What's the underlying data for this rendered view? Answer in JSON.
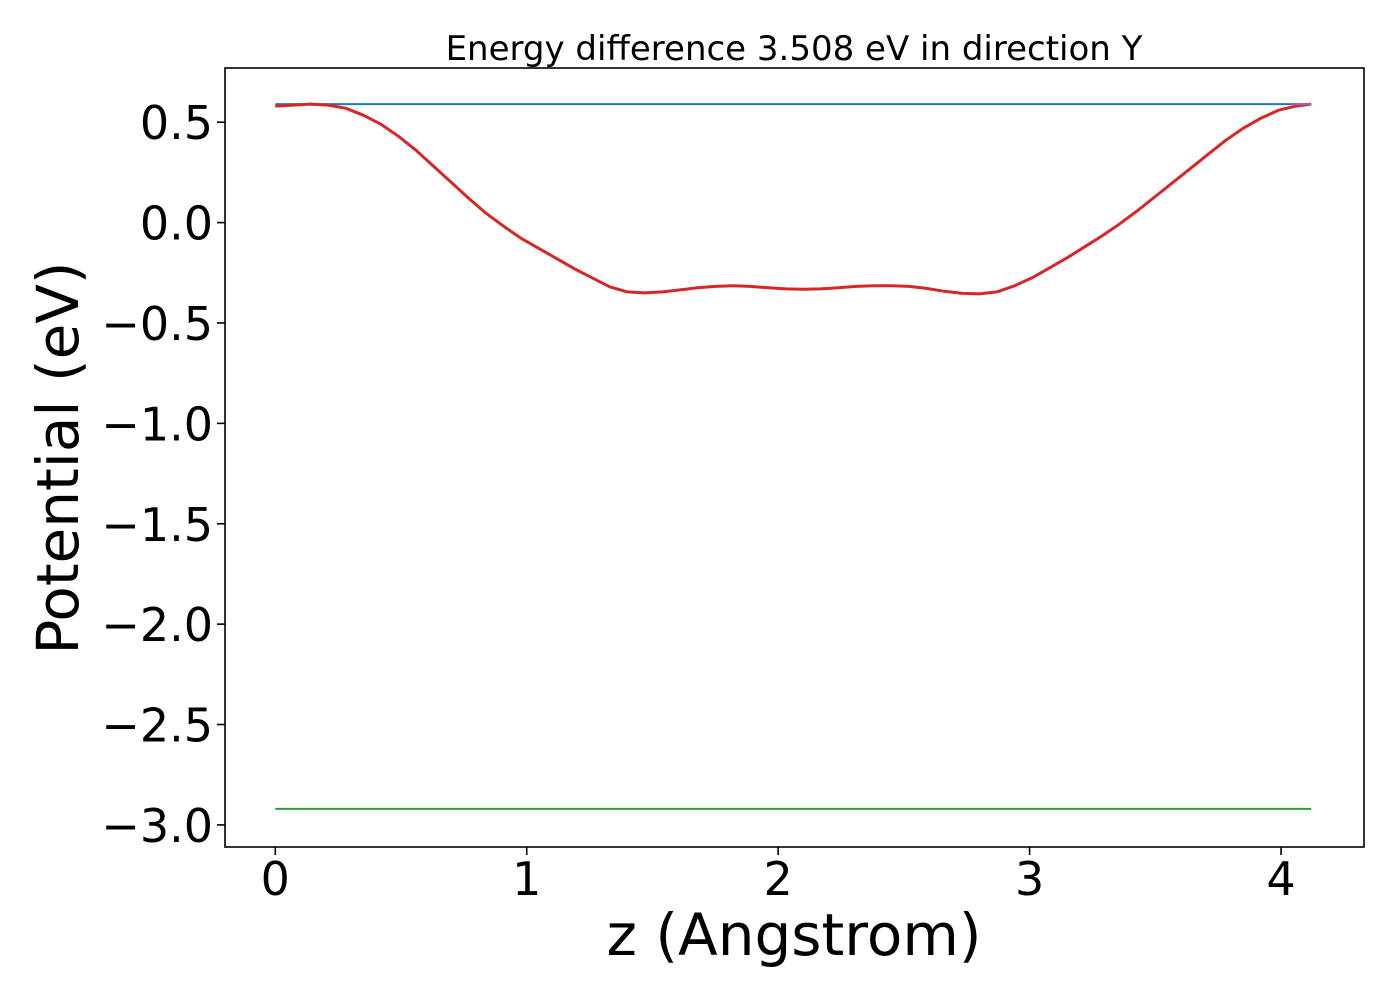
{
  "chart_data": {
    "type": "line",
    "title": "Energy difference 3.508 eV in direction Y",
    "xlabel": "z (Angstrom)",
    "ylabel": "Potential (eV)",
    "xlim": [
      -0.2,
      4.33
    ],
    "ylim": [
      -3.11,
      0.77
    ],
    "x_ticks": [
      0,
      1,
      2,
      3,
      4
    ],
    "x_tick_labels": [
      "0",
      "1",
      "2",
      "3",
      "4"
    ],
    "y_ticks": [
      0.5,
      0.0,
      -0.5,
      -1.0,
      -1.5,
      -2.0,
      -2.5,
      -3.0
    ],
    "y_tick_labels": [
      "0.5",
      "0.0",
      "−0.5",
      "−1.0",
      "−1.5",
      "−2.0",
      "−2.5",
      "−3.0"
    ],
    "grid": false,
    "series": [
      {
        "color": "#1f77b4",
        "x": [
          0,
          4.12
        ],
        "y": [
          0.59,
          0.59
        ]
      },
      {
        "color": "#2ca02c",
        "x": [
          0,
          4.12
        ],
        "y": [
          -2.92,
          -2.92
        ]
      },
      {
        "color": "#d62728",
        "x": [
          0.0,
          0.07,
          0.14,
          0.21,
          0.28,
          0.35,
          0.42,
          0.49,
          0.56,
          0.63,
          0.7,
          0.77,
          0.84,
          0.91,
          0.98,
          1.05,
          1.12,
          1.19,
          1.26,
          1.33,
          1.4,
          1.47,
          1.54,
          1.61,
          1.68,
          1.75,
          1.82,
          1.89,
          1.96,
          2.03,
          2.1,
          2.17,
          2.24,
          2.31,
          2.38,
          2.45,
          2.52,
          2.59,
          2.66,
          2.73,
          2.8,
          2.87,
          2.94,
          3.01,
          3.08,
          3.15,
          3.22,
          3.29,
          3.36,
          3.43,
          3.5,
          3.57,
          3.64,
          3.71,
          3.78,
          3.85,
          3.92,
          3.99,
          4.06,
          4.12
        ],
        "y": [
          0.58,
          0.585,
          0.59,
          0.585,
          0.57,
          0.535,
          0.49,
          0.43,
          0.36,
          0.28,
          0.2,
          0.12,
          0.045,
          -0.02,
          -0.08,
          -0.13,
          -0.18,
          -0.23,
          -0.275,
          -0.32,
          -0.345,
          -0.35,
          -0.345,
          -0.335,
          -0.325,
          -0.318,
          -0.315,
          -0.318,
          -0.325,
          -0.33,
          -0.332,
          -0.33,
          -0.325,
          -0.318,
          -0.315,
          -0.315,
          -0.318,
          -0.328,
          -0.342,
          -0.352,
          -0.355,
          -0.345,
          -0.315,
          -0.275,
          -0.225,
          -0.175,
          -0.12,
          -0.065,
          -0.005,
          0.06,
          0.13,
          0.2,
          0.27,
          0.34,
          0.41,
          0.47,
          0.52,
          0.56,
          0.58,
          0.59
        ]
      },
      {
        "color": "#9467bd",
        "x": [
          4.04,
          4.12
        ],
        "y": [
          0.59,
          0.59
        ]
      }
    ]
  }
}
